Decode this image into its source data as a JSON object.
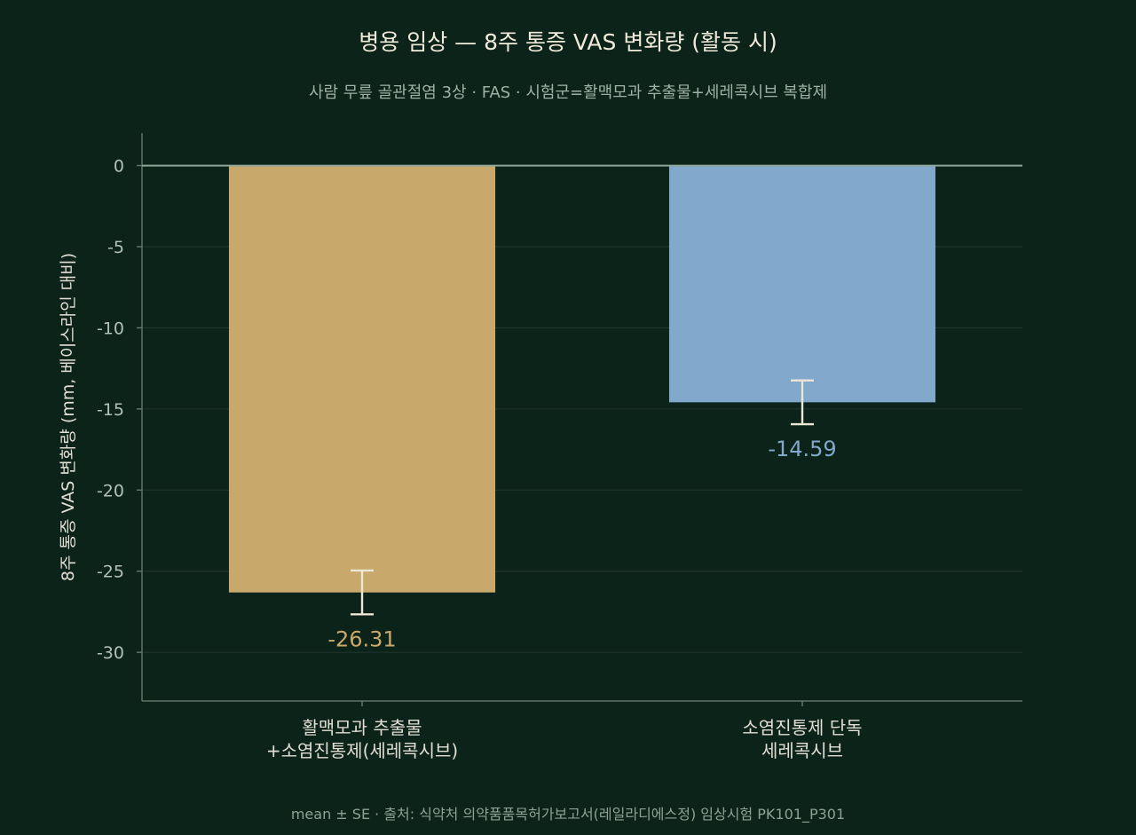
{
  "chart_data": {
    "type": "bar",
    "title": "병용 임상 — 8주 통증 VAS 변화량 (활동 시)",
    "subtitle": "사람 무릎 골관절염 3상 · FAS · 시험군=활맥모과 추출물+세레콕시브 복합제",
    "ylabel": "8주 통증 VAS 변화량 (mm, 베이스라인 대비)",
    "xlabel": "",
    "ylim": [
      -33,
      2
    ],
    "yticks": [
      0,
      -5,
      -10,
      -15,
      -20,
      -25,
      -30
    ],
    "grid": true,
    "categories": [
      [
        "활맥모과 추출물",
        "+소염진통제(세레콕시브)"
      ],
      [
        "소염진통제 단독",
        "세레콕시브"
      ]
    ],
    "values": [
      -26.31,
      -14.59
    ],
    "value_labels": [
      "-26.31",
      "-14.59"
    ],
    "error": [
      1.35,
      1.35
    ],
    "colors": [
      "#c9a96b",
      "#82a8cb"
    ],
    "footnote": "mean ± SE · 출처: 식약처 의약품품목허가보고서(레일라디에스정) 임상시험 PK101_P301"
  }
}
